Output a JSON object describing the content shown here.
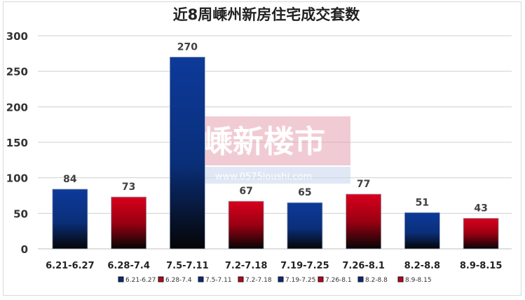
{
  "chart_data": {
    "type": "bar",
    "title": "近8周嵊州新房住宅成交套数",
    "categories": [
      "6.21-6.27",
      "6.28-7.4",
      "7.5-7.11",
      "7.2-7.18",
      "7.19-7.25",
      "7.26-8.1",
      "8.2-8.8",
      "8.9-8.15"
    ],
    "values": [
      84,
      73,
      270,
      67,
      65,
      77,
      51,
      43
    ],
    "bar_colors": [
      "#0b2a78",
      "#c0001a",
      "#0b2a78",
      "#c0001a",
      "#0b2a78",
      "#c0001a",
      "#0b2a78",
      "#c0001a"
    ],
    "legend": [
      "6.21-6.27",
      "6.28-7.4",
      "7.5-7.11",
      "7.2-7.18",
      "7.19-7.25",
      "7.26-8.1",
      "8.2-8.8",
      "8.9-8.15"
    ],
    "legend_position": "bottom",
    "ylim": [
      0,
      300
    ],
    "yticks": [
      0,
      50,
      100,
      150,
      200,
      250,
      300
    ],
    "grid": true,
    "watermark": {
      "text": "嵊新楼市",
      "url": "www.0575loushi.com"
    }
  }
}
